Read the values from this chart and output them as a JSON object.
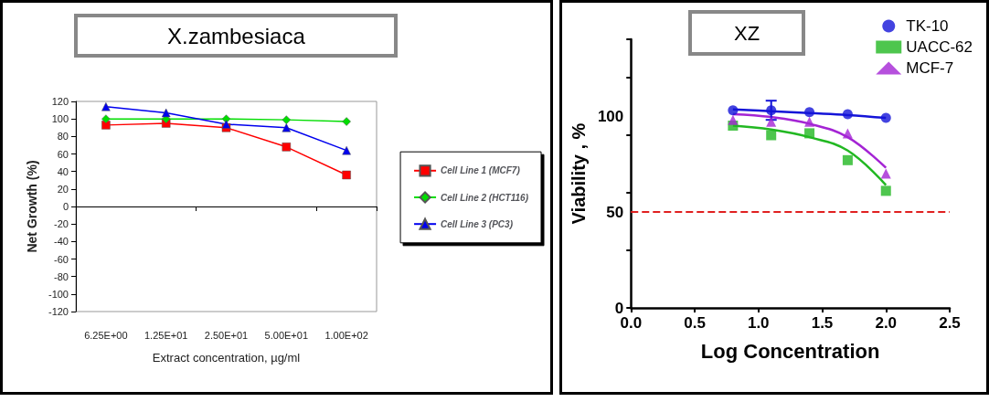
{
  "chart_data": [
    {
      "type": "line",
      "title": "X.zambesiaca",
      "xlabel": "Extract concentration, µg/ml",
      "ylabel": "Net Growth (%)",
      "categories": [
        "6.25E+00",
        "1.25E+01",
        "2.50E+01",
        "5.00E+01",
        "1.00E+02"
      ],
      "series": [
        {
          "name": "Cell Line 1 (MCF7)",
          "color": "#ff0000",
          "marker": "square",
          "values": [
            93,
            95,
            90,
            68,
            36
          ]
        },
        {
          "name": "Cell Line 2 (HCT116)",
          "color": "#00dd00",
          "marker": "diamond",
          "values": [
            100,
            100,
            100,
            99,
            97
          ]
        },
        {
          "name": "Cell Line 3 (PC3)",
          "color": "#0000ee",
          "marker": "triangle",
          "values": [
            114,
            107,
            94,
            90,
            64
          ]
        }
      ],
      "ylim": [
        -120,
        120
      ],
      "yticks": [
        -120,
        -100,
        -80,
        -60,
        -40,
        -20,
        0,
        20,
        40,
        60,
        80,
        100,
        120
      ],
      "legend": "right"
    },
    {
      "type": "scatter",
      "title": "XZ",
      "xlabel": "Log Concentration",
      "ylabel": "Viability , %",
      "x": [
        0.8,
        1.1,
        1.4,
        1.7,
        2.0
      ],
      "series": [
        {
          "name": "TK-10",
          "color": "#1414d8",
          "marker": "circle",
          "values": [
            103,
            103,
            102,
            101,
            99
          ],
          "errors": [
            null,
            5,
            null,
            null,
            null
          ]
        },
        {
          "name": "UACC-62",
          "color": "#22b822",
          "marker": "square",
          "values": [
            95,
            90,
            91,
            77,
            61
          ]
        },
        {
          "name": "MCF-7",
          "color": "#a424d4",
          "marker": "triangle",
          "values": [
            98,
            97,
            97,
            91,
            70
          ]
        },
        {
          "type": "line",
          "color": "#1414d8",
          "x": [
            0.8,
            1.1,
            1.4,
            1.7,
            2.0
          ],
          "values": [
            103.5,
            102.5,
            101.5,
            100.5,
            99
          ]
        },
        {
          "type": "line",
          "color": "#22b822",
          "x": [
            0.8,
            1.1,
            1.4,
            1.7,
            2.0
          ],
          "values": [
            95,
            93,
            89,
            82,
            64
          ]
        },
        {
          "type": "line",
          "color": "#a424d4",
          "x": [
            0.8,
            1.1,
            1.4,
            1.7,
            2.0
          ],
          "values": [
            101,
            99.5,
            96,
            89,
            73
          ]
        }
      ],
      "xlim": [
        0,
        2.5
      ],
      "xticks": [
        {
          "value": 0,
          "label": "0.0"
        },
        0.5,
        {
          "value": 1,
          "label": "1.0"
        },
        1.5,
        {
          "value": 2,
          "label": "2.0"
        },
        2.5
      ],
      "ylim": [
        0,
        140
      ],
      "yticks": [
        0,
        50,
        100
      ],
      "ref_lines": [
        {
          "axis": "y",
          "value": 50,
          "color": "#e02020",
          "line_style": "dashed"
        }
      ],
      "legend": "top right"
    }
  ]
}
